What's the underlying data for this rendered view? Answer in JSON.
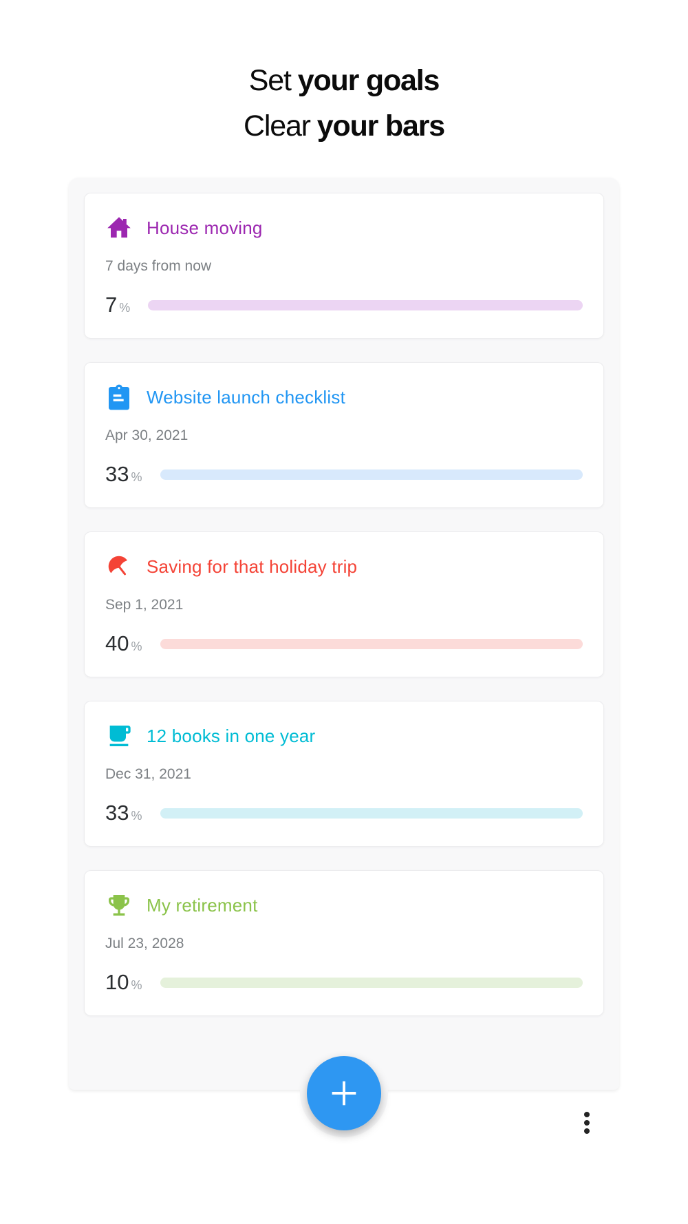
{
  "headline": {
    "line1_regular": "Set",
    "line1_bold": "your goals",
    "line2_regular": "Clear",
    "line2_bold": "your bars"
  },
  "goals": [
    {
      "title": "House moving",
      "icon": "house-icon",
      "due": "7 days from now",
      "percent": 7,
      "percent_sign": "%",
      "color": "#9c27b0",
      "track_color": "#ecd5f3"
    },
    {
      "title": "Website launch checklist",
      "icon": "clipboard-icon",
      "due": "Apr 30, 2021",
      "percent": 33,
      "percent_sign": "%",
      "color": "#2196f3",
      "track_color": "#d8e9fc"
    },
    {
      "title": "Saving for that holiday trip",
      "icon": "beach-umbrella-icon",
      "due": "Sep 1, 2021",
      "percent": 40,
      "percent_sign": "%",
      "color": "#f44336",
      "track_color": "#fcdbd9"
    },
    {
      "title": "12 books in one year",
      "icon": "coffee-mug-icon",
      "due": "Dec 31, 2021",
      "percent": 33,
      "percent_sign": "%",
      "color": "#00bcd4",
      "track_color": "#d2f0f6"
    },
    {
      "title": "My retirement",
      "icon": "trophy-icon",
      "due": "Jul 23, 2028",
      "percent": 10,
      "percent_sign": "%",
      "color": "#8bc34a",
      "track_color": "#e5f1db"
    }
  ],
  "fab": {
    "icon": "plus-icon",
    "color": "#2e97f2"
  },
  "menu": {
    "icon": "kebab-menu-icon"
  },
  "colors": {
    "page_background": "#ffffff",
    "panel_background": "#f8f8f9",
    "card_background": "#ffffff",
    "headline_text": "#0b0b0b",
    "due_text": "#7c8084",
    "percent_number": "#2b2e31",
    "percent_sign": "#9ca1a6"
  }
}
